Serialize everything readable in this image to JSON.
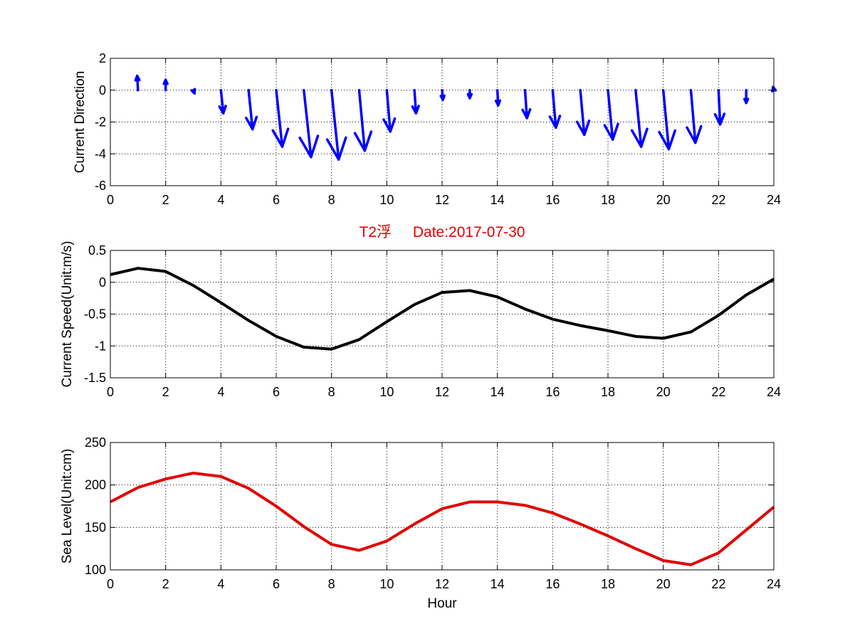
{
  "chart_data": [
    {
      "type": "quiver",
      "ylabel": "Current Direction",
      "xlim": [
        0,
        24
      ],
      "ylim": [
        -6,
        2
      ],
      "xticks": [
        0,
        2,
        4,
        6,
        8,
        10,
        12,
        14,
        16,
        18,
        20,
        22,
        24
      ],
      "yticks": [
        2,
        0,
        -2,
        -4,
        -6
      ],
      "grid": true,
      "color": "#0000ff",
      "vectors": [
        {
          "x": 1,
          "u": -0.05,
          "v": 0.9
        },
        {
          "x": 2,
          "u": 0.0,
          "v": 0.65
        },
        {
          "x": 3,
          "u": 0.08,
          "v": -0.2
        },
        {
          "x": 4,
          "u": 0.15,
          "v": -1.45
        },
        {
          "x": 5,
          "u": 0.25,
          "v": -2.45
        },
        {
          "x": 6,
          "u": 0.38,
          "v": -3.55
        },
        {
          "x": 7,
          "u": 0.45,
          "v": -4.2
        },
        {
          "x": 8,
          "u": 0.45,
          "v": -4.35
        },
        {
          "x": 9,
          "u": 0.35,
          "v": -3.8
        },
        {
          "x": 10,
          "u": 0.22,
          "v": -2.6
        },
        {
          "x": 11,
          "u": 0.1,
          "v": -1.45
        },
        {
          "x": 12,
          "u": 0.05,
          "v": -0.6
        },
        {
          "x": 13,
          "u": 0.0,
          "v": -0.5
        },
        {
          "x": 14,
          "u": 0.05,
          "v": -0.95
        },
        {
          "x": 15,
          "u": 0.12,
          "v": -1.75
        },
        {
          "x": 16,
          "u": 0.2,
          "v": -2.35
        },
        {
          "x": 17,
          "u": 0.25,
          "v": -2.8
        },
        {
          "x": 18,
          "u": 0.3,
          "v": -3.1
        },
        {
          "x": 19,
          "u": 0.35,
          "v": -3.55
        },
        {
          "x": 20,
          "u": 0.35,
          "v": -3.7
        },
        {
          "x": 21,
          "u": 0.28,
          "v": -3.3
        },
        {
          "x": 22,
          "u": 0.1,
          "v": -2.15
        },
        {
          "x": 23,
          "u": 0.0,
          "v": -0.8
        },
        {
          "x": 24,
          "u": -0.05,
          "v": 0.2
        }
      ]
    },
    {
      "type": "line",
      "title_parts": [
        "T2浮",
        "Date:2017-07-30"
      ],
      "title_color": "#e10000",
      "ylabel": "Current Speed(Unit:m/s)",
      "xlim": [
        0,
        24
      ],
      "ylim": [
        -1.5,
        0.5
      ],
      "xticks": [
        0,
        2,
        4,
        6,
        8,
        10,
        12,
        14,
        16,
        18,
        20,
        22,
        24
      ],
      "yticks": [
        0.5,
        0,
        -0.5,
        -1,
        -1.5
      ],
      "grid": true,
      "series": [
        {
          "color": "#000000",
          "x": [
            0,
            1,
            2,
            3,
            4,
            5,
            6,
            7,
            8,
            9,
            10,
            11,
            12,
            13,
            14,
            15,
            16,
            17,
            18,
            19,
            20,
            21,
            22,
            23,
            24
          ],
          "y": [
            0.12,
            0.22,
            0.17,
            -0.05,
            -0.32,
            -0.6,
            -0.85,
            -1.02,
            -1.05,
            -0.9,
            -0.62,
            -0.35,
            -0.16,
            -0.13,
            -0.23,
            -0.42,
            -0.58,
            -0.68,
            -0.76,
            -0.85,
            -0.88,
            -0.78,
            -0.52,
            -0.2,
            0.05
          ]
        }
      ]
    },
    {
      "type": "line",
      "xlabel": "Hour",
      "ylabel": "Sea Level(Unit:cm)",
      "xlim": [
        0,
        24
      ],
      "ylim": [
        100,
        250
      ],
      "xticks": [
        0,
        2,
        4,
        6,
        8,
        10,
        12,
        14,
        16,
        18,
        20,
        22,
        24
      ],
      "yticks": [
        250,
        200,
        150,
        100
      ],
      "grid": true,
      "series": [
        {
          "color": "#e10000",
          "x": [
            0,
            1,
            2,
            3,
            4,
            5,
            6,
            7,
            8,
            9,
            10,
            11,
            12,
            13,
            14,
            15,
            16,
            17,
            18,
            19,
            20,
            21,
            22,
            23,
            24
          ],
          "y": [
            180,
            197,
            207,
            214,
            210,
            196,
            175,
            151,
            130,
            123,
            134,
            154,
            172,
            180,
            180,
            176,
            167,
            154,
            140,
            125,
            111,
            106,
            120,
            147,
            174
          ]
        }
      ]
    }
  ]
}
